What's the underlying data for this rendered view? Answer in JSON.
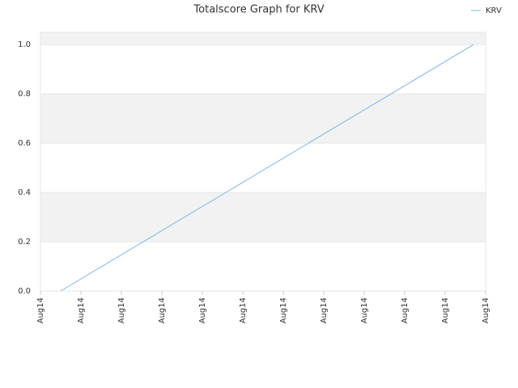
{
  "chart_data": {
    "type": "line",
    "title": "Totalscore Graph for KRV",
    "x": [
      0.5,
      10.7
    ],
    "series": [
      {
        "name": "KRV",
        "color": "#7cb5ec",
        "values": [
          0,
          1
        ]
      }
    ],
    "xlim": [
      0,
      11
    ],
    "xticks": [
      {
        "value": 0,
        "label": "Aug14"
      },
      {
        "value": 1,
        "label": "Aug14"
      },
      {
        "value": 2,
        "label": "Aug14"
      },
      {
        "value": 3,
        "label": "Aug14"
      },
      {
        "value": 4,
        "label": "Aug14"
      },
      {
        "value": 5,
        "label": "Aug14"
      },
      {
        "value": 6,
        "label": "Aug14"
      },
      {
        "value": 7,
        "label": "Aug14"
      },
      {
        "value": 8,
        "label": "Aug14"
      },
      {
        "value": 9,
        "label": "Aug14"
      },
      {
        "value": 10,
        "label": "Aug14"
      },
      {
        "value": 11,
        "label": "Aug14"
      }
    ],
    "ylim": [
      0,
      1.05
    ],
    "yticks": [
      {
        "value": 0,
        "label": "0.0"
      },
      0.2,
      0.4,
      0.6,
      0.8,
      {
        "value": 1,
        "label": "1.0"
      }
    ],
    "grid": true,
    "legend": "top-right"
  }
}
